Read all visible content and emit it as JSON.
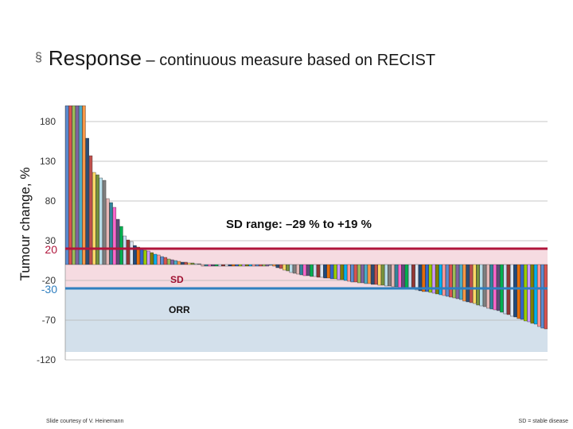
{
  "slide": {
    "bullet": "§",
    "title_main": "Response",
    "title_rest": " – continuous measure based on RECIST",
    "footer_left": "Slide courtesy of V. Heinemann",
    "footer_right": "SD = stable disease"
  },
  "colors": {
    "sd_band": "#f6dbe1",
    "orr_band": "#d3e0eb",
    "line_20": "#b0163c",
    "line_minus30": "#2f7fc0",
    "grid": "#b5b5b5"
  },
  "chart_data": {
    "type": "bar",
    "ylabel": "Tumour change, %",
    "ylim": [
      -120,
      200
    ],
    "yticks": [
      180,
      130,
      80,
      30,
      -20,
      -70,
      -120
    ],
    "threshold_labels": [
      {
        "id": "plus20",
        "value": 20,
        "label": "20"
      },
      {
        "id": "minus30",
        "value": -30,
        "label": "-30"
      }
    ],
    "annotations": {
      "sd_range": "SD range: –29 % to +19 %",
      "sd_band": "SD",
      "orr_band": "ORR"
    },
    "palette": [
      "#5b8bd0",
      "#d9534f",
      "#9bbb59",
      "#8064a2",
      "#4bacc6",
      "#f79646",
      "#2c4d75",
      "#c0504d",
      "#ffd966",
      "#77933c",
      "#b7dde8",
      "#7f7f7f",
      "#e6b8b7",
      "#31859c",
      "#ff66cc",
      "#604a7b",
      "#00b050",
      "#c6d9f0",
      "#943634",
      "#dbe5f1",
      "#1f497d",
      "#e46c0a",
      "#3366cc",
      "#99cc00",
      "#cc99ff",
      "#808000",
      "#00b0f0",
      "#ff9999"
    ],
    "values": [
      200,
      200,
      200,
      200,
      200,
      200,
      159,
      137,
      116,
      113,
      109,
      106,
      83,
      78,
      72,
      57,
      48,
      36,
      31,
      29,
      24,
      22,
      20,
      18,
      17,
      15,
      13,
      12,
      10,
      9,
      7,
      6,
      5,
      4,
      3,
      3,
      2,
      2,
      1,
      1,
      0,
      0,
      0,
      0,
      0,
      0,
      0,
      0,
      0,
      0,
      0,
      0,
      0,
      0,
      0,
      0,
      0,
      0,
      0,
      0,
      -1,
      -2,
      -4,
      -5,
      -7,
      -8,
      -10,
      -11,
      -12,
      -13,
      -14,
      -14,
      -15,
      -15,
      -16,
      -16,
      -17,
      -17,
      -18,
      -18,
      -19,
      -19,
      -20,
      -21,
      -22,
      -22,
      -23,
      -23,
      -24,
      -24,
      -25,
      -25,
      -26,
      -26,
      -27,
      -27,
      -28,
      -28,
      -29,
      -29,
      -30,
      -31,
      -31,
      -32,
      -33,
      -34,
      -34,
      -35,
      -36,
      -37,
      -38,
      -39,
      -40,
      -41,
      -42,
      -43,
      -44,
      -46,
      -47,
      -48,
      -49,
      -51,
      -52,
      -53,
      -55,
      -56,
      -57,
      -58,
      -60,
      -62,
      -63,
      -65,
      -66,
      -68,
      -69,
      -71,
      -72,
      -74,
      -75,
      -78,
      -80,
      -81
    ]
  }
}
